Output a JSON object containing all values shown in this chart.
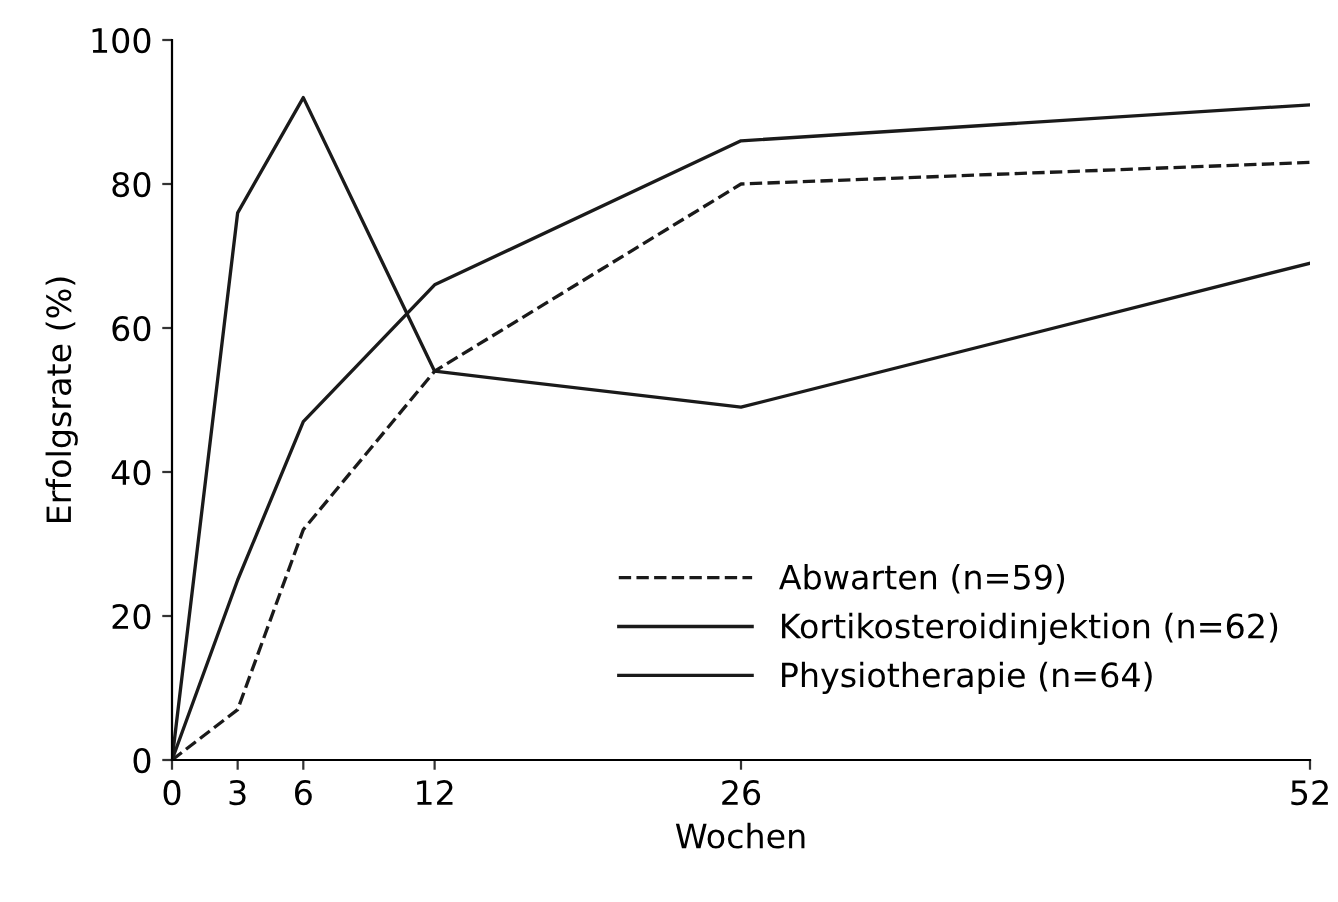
{
  "chart_data": {
    "type": "line",
    "xlabel": "Wochen",
    "ylabel": "Erfolgsrate (%)",
    "x": [
      0,
      3,
      6,
      12,
      26,
      52
    ],
    "series": [
      {
        "name": "Abwarten (n=59)",
        "color": "#1a1a1a",
        "line_style": "dashed",
        "values": [
          0,
          7,
          32,
          54,
          80,
          83
        ]
      },
      {
        "name": "Kortikosteroidinjektion (n=62)",
        "color": "#1a1a1a",
        "line_style": "solid",
        "values": [
          0,
          76,
          92,
          54,
          49,
          69
        ]
      },
      {
        "name": "Physiotherapie (n=64)",
        "color": "#1a1a1a",
        "line_style": "solid",
        "values": [
          0,
          25,
          47,
          66,
          86,
          91
        ]
      }
    ],
    "xlim": [
      0,
      52
    ],
    "xticks": [
      0,
      3,
      6,
      12,
      26,
      52
    ],
    "ylim": [
      0,
      100
    ],
    "yticks": [
      0,
      20,
      40,
      60,
      80,
      100
    ],
    "grid": false,
    "legend": "bottom right",
    "marker": "none"
  }
}
